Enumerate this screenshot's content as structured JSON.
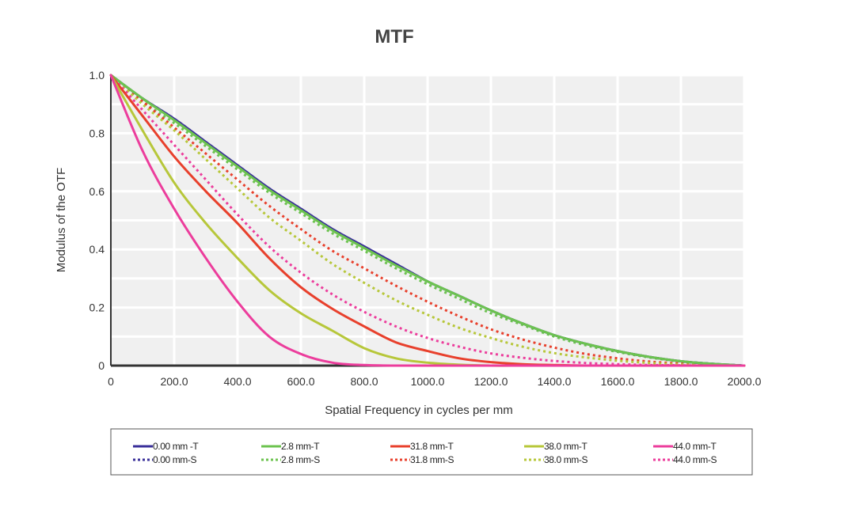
{
  "chart_data": {
    "type": "line",
    "title": "MTF",
    "xlabel": "Spatial Frequency in cycles per mm",
    "ylabel": "Modulus of the OTF",
    "xlim": [
      0,
      2000
    ],
    "ylim": [
      0,
      1
    ],
    "x_ticks": [
      0,
      200,
      400,
      600,
      800,
      1000,
      1200,
      1400,
      1600,
      1800,
      2000
    ],
    "x_tick_labels": [
      "0",
      "200.0",
      "400.0",
      "600.0",
      "800.0",
      "1000.0",
      "1200.0",
      "1400.0",
      "1600.0",
      "1800.0",
      "2000.0"
    ],
    "y_ticks": [
      0,
      0.2,
      0.4,
      0.6,
      0.8,
      1.0
    ],
    "y_tick_labels": [
      "0",
      "0.2",
      "0.4",
      "0.6",
      "0.8",
      "1.0"
    ],
    "grid": true,
    "legend_position": "bottom",
    "x": [
      0,
      100,
      200,
      300,
      400,
      500,
      600,
      700,
      800,
      900,
      1000,
      1100,
      1200,
      1300,
      1400,
      1500,
      1600,
      1700,
      1800,
      1900,
      2000
    ],
    "series": [
      {
        "name": "0.00 mm -T",
        "color": "#3a2f9a",
        "style": "solid",
        "values": [
          1.0,
          0.92,
          0.85,
          0.77,
          0.69,
          0.61,
          0.54,
          0.47,
          0.41,
          0.35,
          0.29,
          0.24,
          0.19,
          0.145,
          0.105,
          0.075,
          0.05,
          0.03,
          0.015,
          0.006,
          0.0
        ]
      },
      {
        "name": "0.00 mm-S",
        "color": "#3a2f9a",
        "style": "dotted",
        "values": [
          1.0,
          0.92,
          0.85,
          0.77,
          0.69,
          0.61,
          0.54,
          0.47,
          0.41,
          0.35,
          0.29,
          0.24,
          0.19,
          0.145,
          0.105,
          0.075,
          0.05,
          0.03,
          0.015,
          0.006,
          0.0
        ]
      },
      {
        "name": "2.8 mm-T",
        "color": "#6cc34f",
        "style": "solid",
        "values": [
          1.0,
          0.92,
          0.845,
          0.765,
          0.685,
          0.605,
          0.535,
          0.465,
          0.405,
          0.345,
          0.29,
          0.24,
          0.19,
          0.145,
          0.105,
          0.075,
          0.05,
          0.03,
          0.015,
          0.006,
          0.0
        ]
      },
      {
        "name": "2.8 mm-S",
        "color": "#6cc34f",
        "style": "dotted",
        "values": [
          1.0,
          0.91,
          0.835,
          0.755,
          0.675,
          0.595,
          0.525,
          0.455,
          0.395,
          0.335,
          0.28,
          0.23,
          0.18,
          0.14,
          0.1,
          0.07,
          0.047,
          0.028,
          0.014,
          0.005,
          0.0
        ]
      },
      {
        "name": "31.8 mm-T",
        "color": "#e8402c",
        "style": "solid",
        "values": [
          1.0,
          0.86,
          0.72,
          0.6,
          0.49,
          0.37,
          0.27,
          0.195,
          0.135,
          0.08,
          0.05,
          0.025,
          0.012,
          0.005,
          0.002,
          0.0,
          0.0,
          0.0,
          0.0,
          0.0,
          0.0
        ]
      },
      {
        "name": "31.8 mm-S",
        "color": "#e8402c",
        "style": "dotted",
        "values": [
          1.0,
          0.91,
          0.82,
          0.73,
          0.64,
          0.55,
          0.47,
          0.395,
          0.335,
          0.275,
          0.22,
          0.17,
          0.125,
          0.09,
          0.062,
          0.04,
          0.025,
          0.014,
          0.007,
          0.002,
          0.0
        ]
      },
      {
        "name": "38.0 mm-T",
        "color": "#b7c73a",
        "style": "solid",
        "values": [
          1.0,
          0.81,
          0.63,
          0.49,
          0.37,
          0.26,
          0.18,
          0.12,
          0.06,
          0.025,
          0.01,
          0.003,
          0.0,
          0.0,
          0.0,
          0.0,
          0.0,
          0.0,
          0.0,
          0.0,
          0.0
        ]
      },
      {
        "name": "38.0 mm-S",
        "color": "#b7c73a",
        "style": "dotted",
        "values": [
          1.0,
          0.9,
          0.81,
          0.71,
          0.61,
          0.51,
          0.43,
          0.35,
          0.285,
          0.225,
          0.175,
          0.13,
          0.095,
          0.065,
          0.043,
          0.028,
          0.017,
          0.009,
          0.004,
          0.001,
          0.0
        ]
      },
      {
        "name": "44.0 mm-T",
        "color": "#ec3d9c",
        "style": "solid",
        "values": [
          1.0,
          0.74,
          0.54,
          0.37,
          0.22,
          0.1,
          0.04,
          0.01,
          0.002,
          0.0,
          0.0,
          0.0,
          0.0,
          0.0,
          0.0,
          0.0,
          0.0,
          0.0,
          0.0,
          0.0,
          0.0
        ]
      },
      {
        "name": "44.0 mm-S",
        "color": "#ec3d9c",
        "style": "dotted",
        "values": [
          1.0,
          0.88,
          0.76,
          0.64,
          0.52,
          0.41,
          0.32,
          0.245,
          0.185,
          0.135,
          0.095,
          0.065,
          0.042,
          0.027,
          0.016,
          0.009,
          0.005,
          0.002,
          0.001,
          0.0,
          0.0
        ]
      }
    ]
  }
}
